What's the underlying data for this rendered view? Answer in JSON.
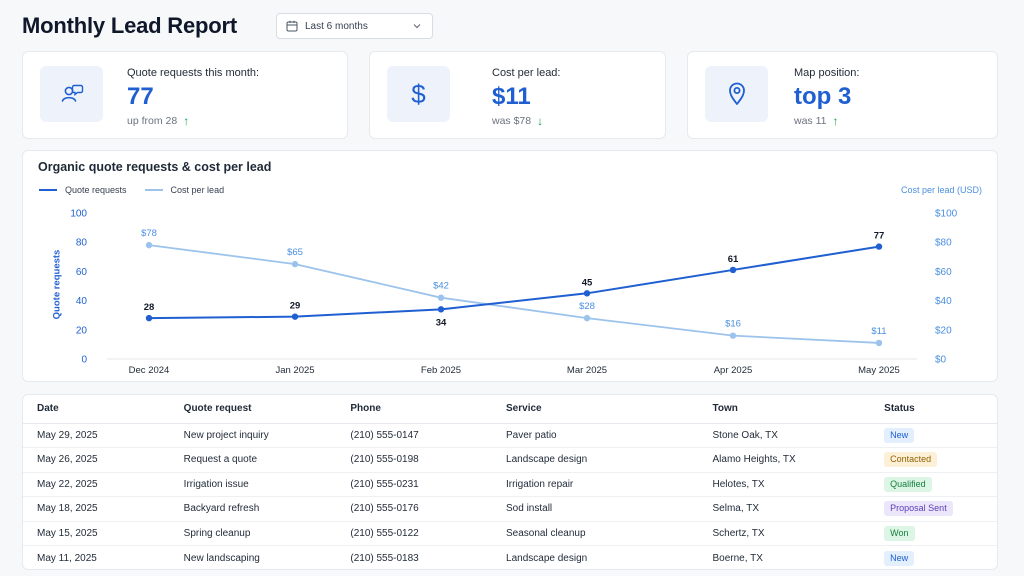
{
  "header": {
    "title": "Monthly Lead Report",
    "date_range": {
      "value": "Last 6 months",
      "icon": "calendar-icon",
      "chevron": "chevron-down-icon"
    }
  },
  "kpis": [
    {
      "icon": "user-chat-icon",
      "label": "Quote requests this month:",
      "value": "77",
      "sub": "up from 28",
      "trend": "up",
      "trend_color": "#16a34a"
    },
    {
      "icon": "dollar-icon",
      "label": "Cost per lead:",
      "value": "$11",
      "sub": "was $78",
      "trend": "down",
      "trend_color": "#16a34a"
    },
    {
      "icon": "map-pin-icon",
      "label": "Map position:",
      "value": "top 3",
      "sub": "was 11",
      "trend": "up",
      "trend_color": "#16a34a"
    }
  ],
  "chart_data": {
    "type": "line",
    "title": "Organic quote requests & cost per lead",
    "categories": [
      "Dec 2024",
      "Jan 2025",
      "Feb 2025",
      "Mar 2025",
      "Apr 2025",
      "May 2025"
    ],
    "series": [
      {
        "name": "Quote requests",
        "axis": "left",
        "color": "#1f5fd1",
        "values": [
          28,
          29,
          34,
          45,
          61,
          77
        ],
        "labels": [
          "28",
          "29",
          "34",
          "45",
          "61",
          "77"
        ]
      },
      {
        "name": "Cost per lead",
        "axis": "right",
        "color": "#9cc3ec",
        "values": [
          78,
          65,
          42,
          28,
          16,
          11
        ],
        "labels": [
          "$78",
          "$65",
          "$42",
          "$28",
          "$16",
          "$11"
        ]
      }
    ],
    "ylabel": "Quote requests",
    "y2label": "Cost per lead (USD)",
    "ylim": [
      0,
      100
    ],
    "y2lim": [
      0,
      100
    ],
    "yticks": [
      "0",
      "20",
      "40",
      "60",
      "80",
      "100"
    ],
    "y2ticks": [
      "$0",
      "$20",
      "$40",
      "$60",
      "$80",
      "$100"
    ],
    "legend": "top-left",
    "grid": false
  },
  "table": {
    "columns": [
      "Date",
      "Quote request",
      "Phone",
      "Service",
      "Town",
      "Status"
    ],
    "rows": [
      {
        "date": "May 29, 2025",
        "request": "New project inquiry",
        "phone": "(210) 555-0147",
        "service": "Paver patio",
        "town": "Stone Oak, TX",
        "status": "New"
      },
      {
        "date": "May 26, 2025",
        "request": "Request a quote",
        "phone": "(210) 555-0198",
        "service": "Landscape design",
        "town": "Alamo Heights, TX",
        "status": "Contacted"
      },
      {
        "date": "May 22, 2025",
        "request": "Irrigation issue",
        "phone": "(210) 555-0231",
        "service": "Irrigation repair",
        "town": "Helotes, TX",
        "status": "Qualified"
      },
      {
        "date": "May 18, 2025",
        "request": "Backyard refresh",
        "phone": "(210) 555-0176",
        "service": "Sod install",
        "town": "Selma, TX",
        "status": "Proposal Sent"
      },
      {
        "date": "May 15, 2025",
        "request": "Spring cleanup",
        "phone": "(210) 555-0122",
        "service": "Seasonal cleanup",
        "town": "Schertz, TX",
        "status": "Won"
      },
      {
        "date": "May 11, 2025",
        "request": "New landscaping",
        "phone": "(210) 555-0183",
        "service": "Landscape design",
        "town": "Boerne, TX",
        "status": "New"
      }
    ],
    "status_colors": {
      "New": {
        "bg": "#e3effd",
        "fg": "#1f5fd1"
      },
      "Contacted": {
        "bg": "#fcf1d6",
        "fg": "#92620a"
      },
      "Qualified": {
        "bg": "#dcf5e5",
        "fg": "#15803d"
      },
      "Proposal Sent": {
        "bg": "#ece6fb",
        "fg": "#5b3fb8"
      },
      "Won": {
        "bg": "#dcf5e5",
        "fg": "#15803d"
      }
    }
  }
}
